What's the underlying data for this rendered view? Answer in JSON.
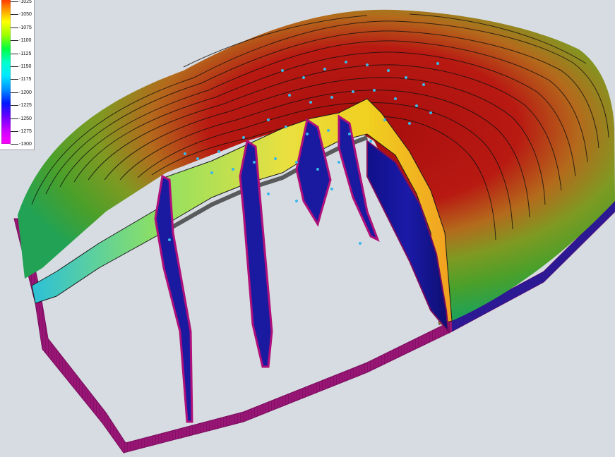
{
  "legend": {
    "ticks": [
      "-1025",
      "-1050",
      "-1075",
      "-1100",
      "-1125",
      "-1150",
      "-1175",
      "-1200",
      "-1225",
      "-1250",
      "-1275",
      "-1300"
    ],
    "colors": [
      "#ff0000",
      "#ff8a00",
      "#ffff00",
      "#9cff00",
      "#00ff40",
      "#00ffcc",
      "#00e8ff",
      "#0090ff",
      "#0018ff",
      "#6a00ff",
      "#c800ff",
      "#ff00ff"
    ]
  },
  "scene": {
    "surface_colors": [
      "#b01010",
      "#c63515",
      "#a8a020",
      "#5aa030",
      "#22a04a"
    ],
    "fault_colors": {
      "front": "#1a1aa0",
      "edge": "#b0107a"
    },
    "boundary_color": "#9a1676",
    "well_color": "#3ab8e8"
  }
}
